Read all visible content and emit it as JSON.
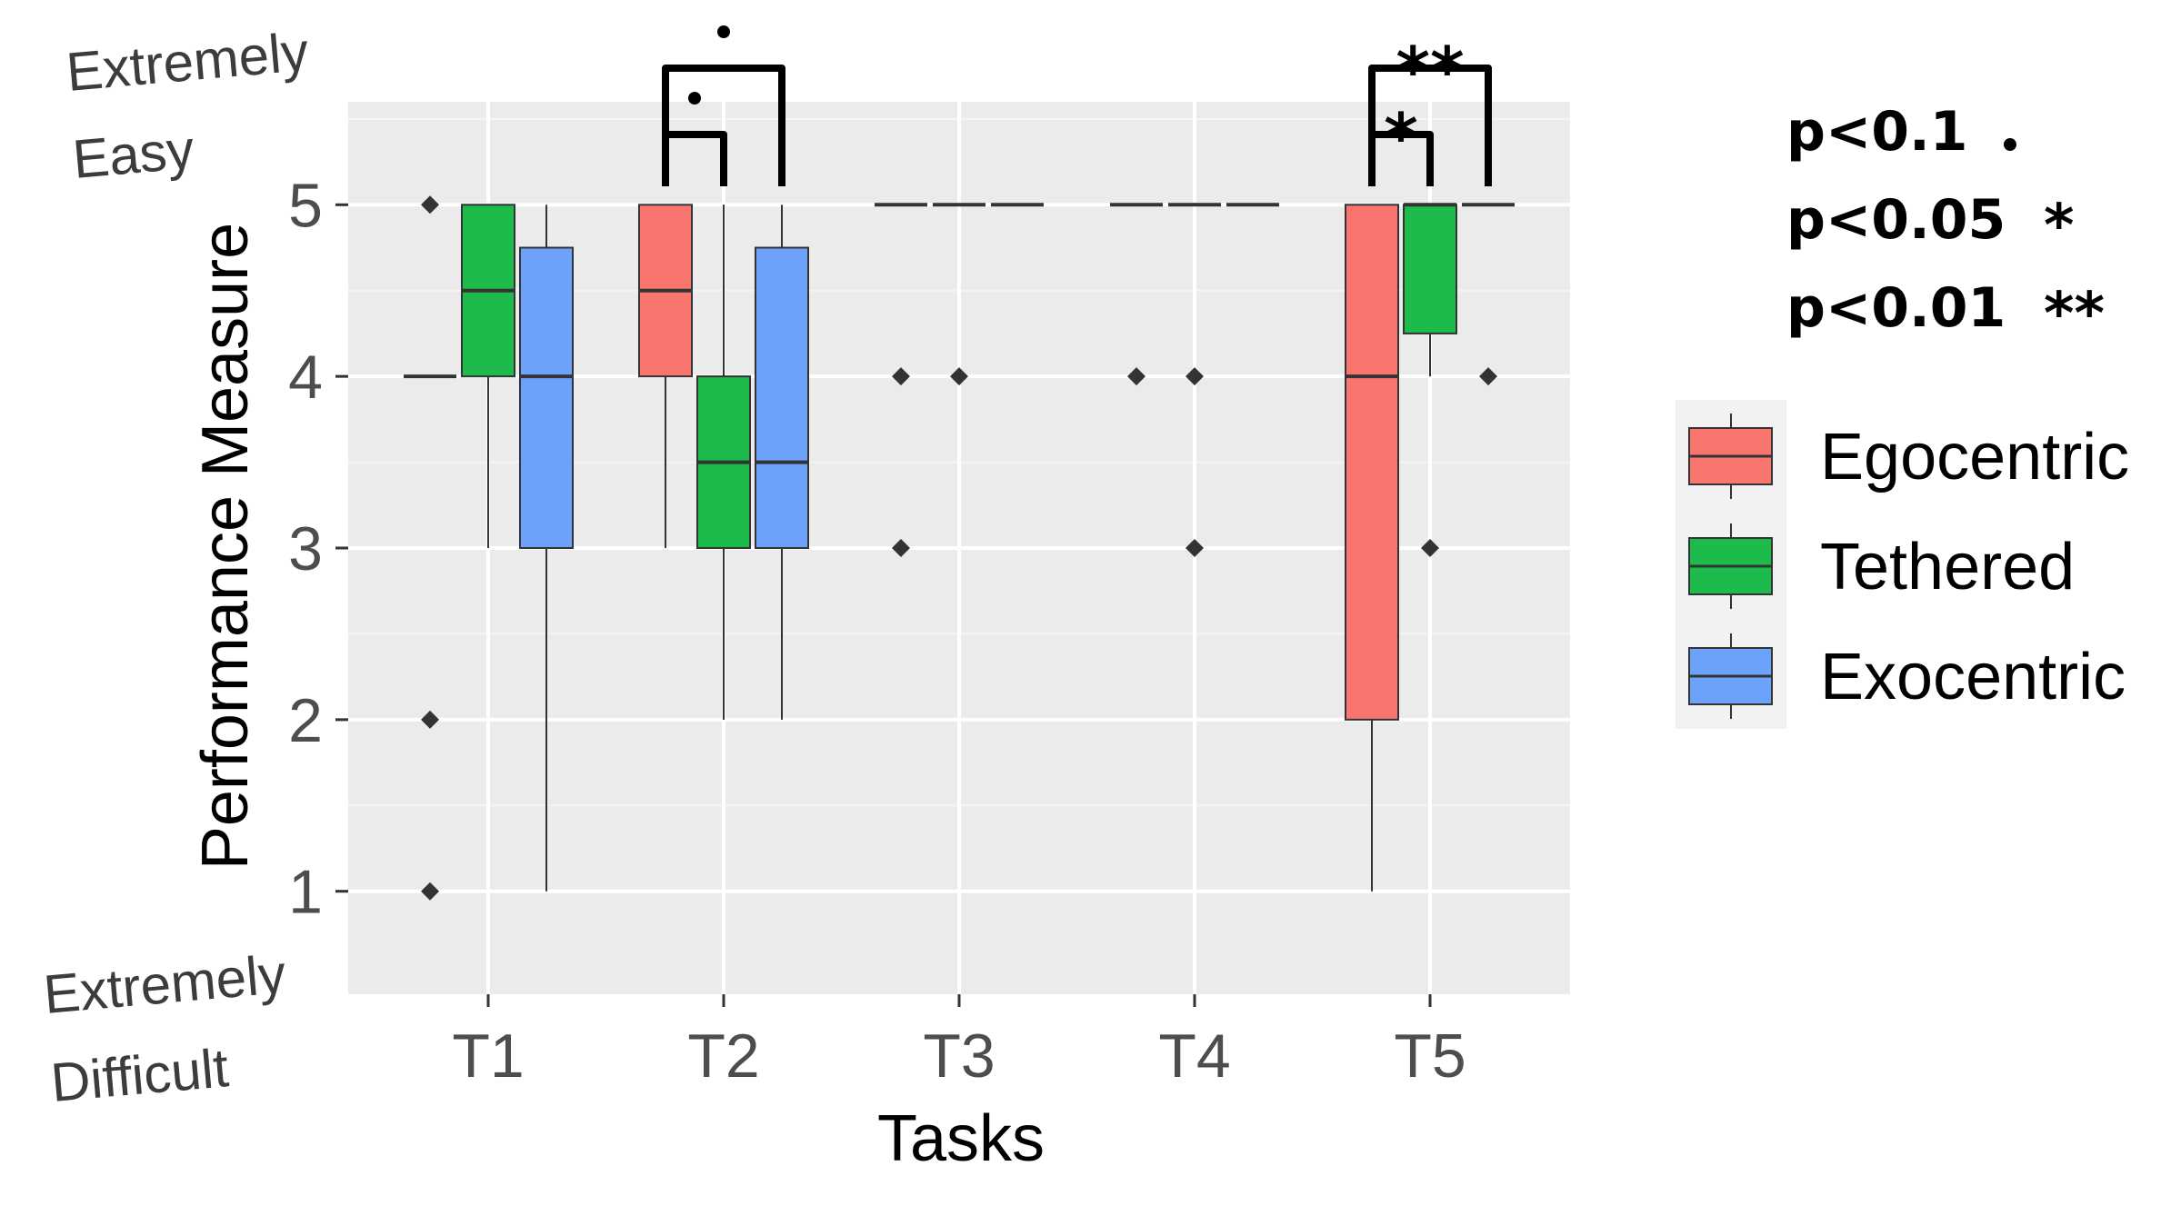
{
  "chart_data": {
    "type": "boxplot",
    "xlabel": "Tasks",
    "ylabel": "Performance Measure",
    "categories": [
      "T1",
      "T2",
      "T3",
      "T4",
      "T5"
    ],
    "ylim": [
      0.4,
      5.6
    ],
    "yticks": [
      1,
      2,
      3,
      4,
      5
    ],
    "y_anchor_labels": {
      "top": [
        "Extremely",
        "Easy"
      ],
      "bottom": [
        "Extremely",
        "Difficult"
      ]
    },
    "grid": true,
    "series": [
      {
        "name": "Egocentric",
        "color": "#F8766D",
        "boxes": [
          {
            "category": "T1",
            "lower_whisker": 4,
            "q1": 4,
            "median": 4,
            "q3": 4,
            "upper_whisker": 4,
            "outliers": [
              5,
              2,
              1
            ]
          },
          {
            "category": "T2",
            "lower_whisker": 3,
            "q1": 4,
            "median": 4.5,
            "q3": 5,
            "upper_whisker": 5,
            "outliers": []
          },
          {
            "category": "T3",
            "lower_whisker": 5,
            "q1": 5,
            "median": 5,
            "q3": 5,
            "upper_whisker": 5,
            "outliers": [
              4,
              3
            ]
          },
          {
            "category": "T4",
            "lower_whisker": 5,
            "q1": 5,
            "median": 5,
            "q3": 5,
            "upper_whisker": 5,
            "outliers": [
              4
            ]
          },
          {
            "category": "T5",
            "lower_whisker": 1,
            "q1": 2,
            "median": 4,
            "q3": 5,
            "upper_whisker": 5,
            "outliers": []
          }
        ]
      },
      {
        "name": "Tethered",
        "color": "#1DBB4B",
        "boxes": [
          {
            "category": "T1",
            "lower_whisker": 3,
            "q1": 4,
            "median": 4.5,
            "q3": 5,
            "upper_whisker": 5,
            "outliers": []
          },
          {
            "category": "T2",
            "lower_whisker": 2,
            "q1": 3,
            "median": 3.5,
            "q3": 4,
            "upper_whisker": 5,
            "outliers": []
          },
          {
            "category": "T3",
            "lower_whisker": 5,
            "q1": 5,
            "median": 5,
            "q3": 5,
            "upper_whisker": 5,
            "outliers": [
              4
            ]
          },
          {
            "category": "T4",
            "lower_whisker": 5,
            "q1": 5,
            "median": 5,
            "q3": 5,
            "upper_whisker": 5,
            "outliers": [
              4,
              3
            ]
          },
          {
            "category": "T5",
            "lower_whisker": 4,
            "q1": 4.25,
            "median": 5,
            "q3": 5,
            "upper_whisker": 5,
            "outliers": [
              3
            ]
          }
        ]
      },
      {
        "name": "Exocentric",
        "color": "#6CA2FA",
        "boxes": [
          {
            "category": "T1",
            "lower_whisker": 1,
            "q1": 3,
            "median": 4,
            "q3": 4.75,
            "upper_whisker": 5,
            "outliers": []
          },
          {
            "category": "T2",
            "lower_whisker": 2,
            "q1": 3,
            "median": 3.5,
            "q3": 4.75,
            "upper_whisker": 5,
            "outliers": []
          },
          {
            "category": "T3",
            "lower_whisker": 5,
            "q1": 5,
            "median": 5,
            "q3": 5,
            "upper_whisker": 5,
            "outliers": []
          },
          {
            "category": "T4",
            "lower_whisker": 5,
            "q1": 5,
            "median": 5,
            "q3": 5,
            "upper_whisker": 5,
            "outliers": []
          },
          {
            "category": "T5",
            "lower_whisker": 5,
            "q1": 5,
            "median": 5,
            "q3": 5,
            "upper_whisker": 5,
            "outliers": [
              4
            ]
          }
        ]
      }
    ],
    "significance": [
      {
        "category": "T2",
        "from_series": "Egocentric",
        "to_series": "Exocentric",
        "label": ".",
        "level": "outer"
      },
      {
        "category": "T2",
        "from_series": "Egocentric",
        "to_series": "Tethered",
        "label": ".",
        "level": "inner"
      },
      {
        "category": "T5",
        "from_series": "Egocentric",
        "to_series": "Exocentric",
        "label": "**",
        "level": "outer"
      },
      {
        "category": "T5",
        "from_series": "Egocentric",
        "to_series": "Tethered",
        "label": "*",
        "level": "inner"
      }
    ],
    "significance_key": [
      {
        "text": "p<0.1",
        "symbol": "."
      },
      {
        "text": "p<0.05",
        "symbol": "*"
      },
      {
        "text": "p<0.01",
        "symbol": "**"
      }
    ],
    "legend": {
      "placement": "right",
      "entries": [
        "Egocentric",
        "Tethered",
        "Exocentric"
      ]
    }
  }
}
